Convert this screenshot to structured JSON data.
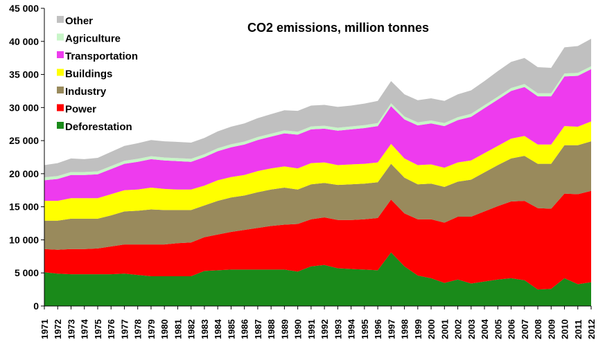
{
  "chart_data": {
    "type": "area",
    "stacked": true,
    "title": "CO2 emissions, million tonnes",
    "xlabel": "",
    "ylabel": "",
    "ylim": [
      0,
      45000
    ],
    "yticks": [
      0,
      5000,
      10000,
      15000,
      20000,
      25000,
      30000,
      35000,
      40000,
      45000
    ],
    "ytick_labels": [
      "0",
      "5 000",
      "10 000",
      "15 000",
      "20 000",
      "25 000",
      "30 000",
      "35 000",
      "40 000",
      "45 000"
    ],
    "grid": false,
    "legend_position": "top-left",
    "categories": [
      "1971",
      "1972",
      "1973",
      "1974",
      "1975",
      "1976",
      "1977",
      "1978",
      "1979",
      "1980",
      "1981",
      "1982",
      "1983",
      "1984",
      "1985",
      "1986",
      "1987",
      "1988",
      "1989",
      "1990",
      "1991",
      "1992",
      "1993",
      "1994",
      "1995",
      "1996",
      "1997",
      "1998",
      "1999",
      "2000",
      "2001",
      "2002",
      "2003",
      "2004",
      "2005",
      "2006",
      "2007",
      "2008",
      "2009",
      "2010",
      "2011",
      "2012"
    ],
    "series": [
      {
        "name": "Deforestation",
        "color": "#1a8a1a",
        "values": [
          5100,
          4900,
          4800,
          4800,
          4800,
          4800,
          4900,
          4700,
          4500,
          4500,
          4500,
          4500,
          5300,
          5400,
          5500,
          5500,
          5500,
          5500,
          5500,
          5200,
          6000,
          6200,
          5700,
          5600,
          5500,
          5400,
          8100,
          6000,
          4600,
          4200,
          3500,
          4000,
          3400,
          3700,
          4000,
          4200,
          3900,
          2500,
          2600,
          4200,
          3300,
          3600
        ]
      },
      {
        "name": "Power",
        "color": "#ff0000",
        "values": [
          3500,
          3600,
          3800,
          3800,
          3900,
          4200,
          4400,
          4600,
          4800,
          4800,
          5000,
          5100,
          5100,
          5400,
          5700,
          6000,
          6300,
          6600,
          6800,
          7200,
          7100,
          7200,
          7300,
          7400,
          7600,
          7900,
          8000,
          8000,
          8500,
          8900,
          9100,
          9500,
          10100,
          10600,
          11100,
          11600,
          12000,
          12300,
          12100,
          12800,
          13600,
          13800
        ]
      },
      {
        "name": "Industry",
        "color": "#998a5c",
        "values": [
          4300,
          4400,
          4600,
          4600,
          4500,
          4700,
          5000,
          5100,
          5300,
          5200,
          5000,
          4900,
          4800,
          5100,
          5200,
          5200,
          5400,
          5500,
          5600,
          5200,
          5300,
          5200,
          5300,
          5400,
          5400,
          5400,
          5400,
          5400,
          5300,
          5400,
          5400,
          5300,
          5600,
          5900,
          6200,
          6500,
          6800,
          6700,
          6800,
          7300,
          7400,
          7500
        ]
      },
      {
        "name": "Buildings",
        "color": "#ffff00",
        "values": [
          3000,
          3000,
          3100,
          3100,
          3100,
          3200,
          3200,
          3200,
          3300,
          3200,
          3100,
          3100,
          3000,
          3100,
          3100,
          3100,
          3200,
          3200,
          3200,
          3200,
          3200,
          3100,
          3000,
          3000,
          3000,
          3000,
          3000,
          2900,
          2900,
          2900,
          2900,
          2900,
          2900,
          2900,
          2900,
          3000,
          3000,
          2900,
          2900,
          2900,
          2800,
          3000
        ]
      },
      {
        "name": "Transportation",
        "color": "#ee3bee",
        "values": [
          3100,
          3300,
          3500,
          3500,
          3600,
          3800,
          4000,
          4200,
          4300,
          4300,
          4300,
          4200,
          4300,
          4400,
          4500,
          4600,
          4700,
          4800,
          5000,
          5100,
          5100,
          5100,
          5200,
          5300,
          5400,
          5500,
          5700,
          5900,
          6000,
          6200,
          6300,
          6400,
          6600,
          6800,
          7000,
          7200,
          7400,
          7300,
          7300,
          7500,
          7700,
          7900
        ]
      },
      {
        "name": "Agriculture",
        "color": "#c8f5c8",
        "values": [
          450,
          450,
          450,
          450,
          450,
          450,
          450,
          450,
          450,
          450,
          450,
          450,
          450,
          450,
          450,
          450,
          450,
          450,
          450,
          450,
          450,
          450,
          450,
          450,
          450,
          450,
          450,
          450,
          450,
          450,
          450,
          450,
          450,
          450,
          450,
          450,
          450,
          450,
          450,
          450,
          450,
          450
        ]
      },
      {
        "name": "Other",
        "color": "#c0c0c0",
        "values": [
          1850,
          1950,
          2050,
          1950,
          2050,
          2150,
          2250,
          2350,
          2450,
          2450,
          2450,
          2450,
          2450,
          2550,
          2650,
          2750,
          2850,
          2950,
          3050,
          3150,
          3150,
          3150,
          3150,
          3150,
          3250,
          3350,
          3350,
          3350,
          3350,
          3350,
          3350,
          3450,
          3550,
          3650,
          3850,
          3950,
          3950,
          3950,
          3850,
          3950,
          4050,
          4150
        ]
      }
    ]
  }
}
